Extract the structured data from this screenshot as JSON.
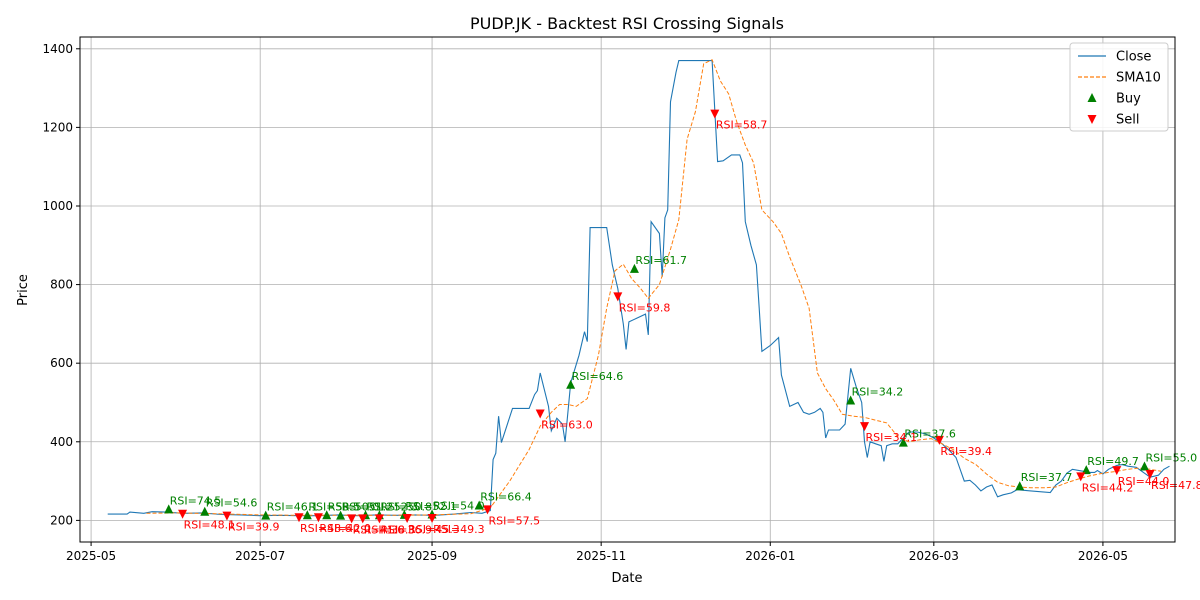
{
  "chart_data": {
    "type": "line",
    "title": "PUDP.JK - Backtest RSI Crossing Signals",
    "xlabel": "Date",
    "ylabel": "Price",
    "grid": true,
    "legend_position": "top-right",
    "xlim": [
      "2025-04-27",
      "2026-05-27"
    ],
    "ylim": [
      145,
      1430
    ],
    "x_ticks": [
      "2025-05-01",
      "2025-07-01",
      "2025-09-01",
      "2025-11-01",
      "2026-01-01",
      "2026-03-01",
      "2026-05-01"
    ],
    "x_tick_labels": [
      "2025-05",
      "2025-07",
      "2025-09",
      "2025-11",
      "2026-01",
      "2026-03",
      "2026-05"
    ],
    "y_ticks": [
      200,
      400,
      600,
      800,
      1000,
      1200,
      1400
    ],
    "colors": {
      "close": "#1f77b4",
      "sma": "#ff7f0e",
      "buy": "#008000",
      "sell": "#ff0000"
    },
    "series": [
      {
        "name": "Close",
        "style": "solid",
        "points": [
          [
            "2025-05-07",
            216
          ],
          [
            "2025-05-14",
            216
          ],
          [
            "2025-05-15",
            221
          ],
          [
            "2025-05-20",
            218
          ],
          [
            "2025-05-23",
            222
          ],
          [
            "2025-05-28",
            221
          ],
          [
            "2025-06-03",
            218
          ],
          [
            "2025-06-10",
            219
          ],
          [
            "2025-06-17",
            215
          ],
          [
            "2025-06-24",
            214
          ],
          [
            "2025-07-01",
            212
          ],
          [
            "2025-07-08",
            213
          ],
          [
            "2025-07-15",
            212
          ],
          [
            "2025-07-22",
            212
          ],
          [
            "2025-07-29",
            214
          ],
          [
            "2025-08-05",
            212
          ],
          [
            "2025-08-12",
            214
          ],
          [
            "2025-08-19",
            213
          ],
          [
            "2025-08-26",
            214
          ],
          [
            "2025-09-02",
            213
          ],
          [
            "2025-09-09",
            216
          ],
          [
            "2025-09-15",
            220
          ],
          [
            "2025-09-19",
            218
          ],
          [
            "2025-09-22",
            225
          ],
          [
            "2025-09-23",
            355
          ],
          [
            "2025-09-24",
            371
          ],
          [
            "2025-09-25",
            465
          ],
          [
            "2025-09-26",
            398
          ],
          [
            "2025-09-30",
            485
          ],
          [
            "2025-10-03",
            485
          ],
          [
            "2025-10-06",
            485
          ],
          [
            "2025-10-08",
            520
          ],
          [
            "2025-10-09",
            530
          ],
          [
            "2025-10-10",
            575
          ],
          [
            "2025-10-13",
            490
          ],
          [
            "2025-10-14",
            428
          ],
          [
            "2025-10-16",
            460
          ],
          [
            "2025-10-18",
            445
          ],
          [
            "2025-10-19",
            400
          ],
          [
            "2025-10-21",
            550
          ],
          [
            "2025-10-24",
            620
          ],
          [
            "2025-10-26",
            680
          ],
          [
            "2025-10-27",
            655
          ],
          [
            "2025-10-28",
            945
          ],
          [
            "2025-11-01",
            945
          ],
          [
            "2025-11-03",
            945
          ],
          [
            "2025-11-05",
            850
          ],
          [
            "2025-11-07",
            790
          ],
          [
            "2025-11-09",
            700
          ],
          [
            "2025-11-10",
            635
          ],
          [
            "2025-11-11",
            705
          ],
          [
            "2025-11-14",
            715
          ],
          [
            "2025-11-17",
            725
          ],
          [
            "2025-11-18",
            672
          ],
          [
            "2025-11-19",
            960
          ],
          [
            "2025-11-22",
            930
          ],
          [
            "2025-11-23",
            820
          ],
          [
            "2025-11-24",
            970
          ],
          [
            "2025-11-25",
            990
          ],
          [
            "2025-11-26",
            1265
          ],
          [
            "2025-11-28",
            1340
          ],
          [
            "2025-11-29",
            1370
          ],
          [
            "2025-12-08",
            1370
          ],
          [
            "2025-12-11",
            1370
          ],
          [
            "2025-12-13",
            1113
          ],
          [
            "2025-12-15",
            1115
          ],
          [
            "2025-12-18",
            1130
          ],
          [
            "2025-12-21",
            1130
          ],
          [
            "2025-12-22",
            1110
          ],
          [
            "2025-12-23",
            960
          ],
          [
            "2025-12-25",
            900
          ],
          [
            "2025-12-27",
            850
          ],
          [
            "2025-12-28",
            740
          ],
          [
            "2025-12-29",
            630
          ],
          [
            "2026-01-01",
            645
          ],
          [
            "2026-01-04",
            665
          ],
          [
            "2026-01-05",
            570
          ],
          [
            "2026-01-08",
            490
          ],
          [
            "2026-01-11",
            500
          ],
          [
            "2026-01-13",
            475
          ],
          [
            "2026-01-15",
            470
          ],
          [
            "2026-01-17",
            475
          ],
          [
            "2026-01-19",
            485
          ],
          [
            "2026-01-20",
            475
          ],
          [
            "2026-01-21",
            410
          ],
          [
            "2026-01-22",
            430
          ],
          [
            "2026-01-24",
            430
          ],
          [
            "2026-01-26",
            430
          ],
          [
            "2026-01-28",
            445
          ],
          [
            "2026-01-30",
            587
          ],
          [
            "2026-02-01",
            540
          ],
          [
            "2026-02-03",
            500
          ],
          [
            "2026-02-04",
            400
          ],
          [
            "2026-02-05",
            360
          ],
          [
            "2026-02-06",
            400
          ],
          [
            "2026-02-08",
            395
          ],
          [
            "2026-02-10",
            390
          ],
          [
            "2026-02-11",
            350
          ],
          [
            "2026-02-12",
            390
          ],
          [
            "2026-02-14",
            395
          ],
          [
            "2026-02-16",
            395
          ],
          [
            "2026-02-18",
            410
          ],
          [
            "2026-02-20",
            425
          ],
          [
            "2026-02-23",
            425
          ],
          [
            "2026-02-26",
            420
          ],
          [
            "2026-03-01",
            410
          ],
          [
            "2026-03-04",
            395
          ],
          [
            "2026-03-07",
            375
          ],
          [
            "2026-03-09",
            360
          ],
          [
            "2026-03-11",
            320
          ],
          [
            "2026-03-12",
            300
          ],
          [
            "2026-03-14",
            302
          ],
          [
            "2026-03-16",
            290
          ],
          [
            "2026-03-18",
            275
          ],
          [
            "2026-03-20",
            285
          ],
          [
            "2026-03-22",
            290
          ],
          [
            "2026-03-24",
            260
          ],
          [
            "2026-03-26",
            265
          ],
          [
            "2026-03-29",
            270
          ],
          [
            "2026-03-31",
            278
          ],
          [
            "2026-04-05",
            275
          ],
          [
            "2026-04-12",
            271
          ],
          [
            "2026-04-14",
            290
          ],
          [
            "2026-04-16",
            300
          ],
          [
            "2026-04-18",
            320
          ],
          [
            "2026-04-20",
            330
          ],
          [
            "2026-04-24",
            325
          ],
          [
            "2026-04-26",
            322
          ],
          [
            "2026-04-28",
            322
          ],
          [
            "2026-04-29",
            327
          ],
          [
            "2026-05-01",
            318
          ],
          [
            "2026-05-03",
            330
          ],
          [
            "2026-05-06",
            340
          ],
          [
            "2026-05-08",
            342
          ],
          [
            "2026-05-10",
            338
          ],
          [
            "2026-05-13",
            335
          ],
          [
            "2026-05-16",
            320
          ],
          [
            "2026-05-18",
            310
          ],
          [
            "2026-05-21",
            315
          ],
          [
            "2026-05-23",
            330
          ],
          [
            "2026-05-25",
            338
          ]
        ]
      },
      {
        "name": "SMA10",
        "style": "dashed",
        "points": [
          [
            "2025-05-21",
            218
          ],
          [
            "2025-06-01",
            219
          ],
          [
            "2025-06-15",
            217
          ],
          [
            "2025-07-01",
            214
          ],
          [
            "2025-07-15",
            213
          ],
          [
            "2025-08-01",
            213
          ],
          [
            "2025-08-15",
            213
          ],
          [
            "2025-09-01",
            214
          ],
          [
            "2025-09-15",
            217
          ],
          [
            "2025-09-22",
            232
          ],
          [
            "2025-09-29",
            300
          ],
          [
            "2025-10-06",
            380
          ],
          [
            "2025-10-10",
            440
          ],
          [
            "2025-10-14",
            475
          ],
          [
            "2025-10-17",
            495
          ],
          [
            "2025-10-20",
            495
          ],
          [
            "2025-10-23",
            490
          ],
          [
            "2025-10-27",
            510
          ],
          [
            "2025-10-31",
            620
          ],
          [
            "2025-11-03",
            740
          ],
          [
            "2025-11-06",
            835
          ],
          [
            "2025-11-09",
            852
          ],
          [
            "2025-11-12",
            815
          ],
          [
            "2025-11-15",
            792
          ],
          [
            "2025-11-18",
            765
          ],
          [
            "2025-11-22",
            800
          ],
          [
            "2025-11-26",
            890
          ],
          [
            "2025-11-29",
            965
          ],
          [
            "2025-12-02",
            1170
          ],
          [
            "2025-12-05",
            1240
          ],
          [
            "2025-12-08",
            1362
          ],
          [
            "2025-12-11",
            1372
          ],
          [
            "2025-12-14",
            1318
          ],
          [
            "2025-12-17",
            1285
          ],
          [
            "2025-12-20",
            1212
          ],
          [
            "2025-12-23",
            1155
          ],
          [
            "2025-12-26",
            1110
          ],
          [
            "2025-12-29",
            990
          ],
          [
            "2026-01-02",
            960
          ],
          [
            "2026-01-05",
            930
          ],
          [
            "2026-01-08",
            870
          ],
          [
            "2026-01-12",
            800
          ],
          [
            "2026-01-15",
            740
          ],
          [
            "2026-01-18",
            575
          ],
          [
            "2026-01-21",
            535
          ],
          [
            "2026-01-24",
            505
          ],
          [
            "2026-01-27",
            470
          ],
          [
            "2026-01-31",
            465
          ],
          [
            "2026-02-04",
            462
          ],
          [
            "2026-02-08",
            455
          ],
          [
            "2026-02-12",
            448
          ],
          [
            "2026-02-16",
            413
          ],
          [
            "2026-02-20",
            400
          ],
          [
            "2026-02-24",
            405
          ],
          [
            "2026-02-28",
            408
          ],
          [
            "2026-03-04",
            395
          ],
          [
            "2026-03-08",
            380
          ],
          [
            "2026-03-12",
            358
          ],
          [
            "2026-03-16",
            343
          ],
          [
            "2026-03-20",
            318
          ],
          [
            "2026-03-24",
            297
          ],
          [
            "2026-03-28",
            288
          ],
          [
            "2026-04-01",
            285
          ],
          [
            "2026-04-05",
            283
          ],
          [
            "2026-04-10",
            283
          ],
          [
            "2026-04-14",
            285
          ],
          [
            "2026-04-18",
            296
          ],
          [
            "2026-04-22",
            305
          ],
          [
            "2026-04-26",
            313
          ],
          [
            "2026-05-01",
            320
          ],
          [
            "2026-05-06",
            325
          ],
          [
            "2026-05-10",
            330
          ],
          [
            "2026-05-14",
            333
          ],
          [
            "2026-05-18",
            330
          ],
          [
            "2026-05-22",
            325
          ]
        ]
      }
    ],
    "buy_signals": [
      {
        "date": "2025-05-29",
        "price": 228,
        "label": "RSI=74.5"
      },
      {
        "date": "2025-06-11",
        "price": 222,
        "label": "RSI=54.6"
      },
      {
        "date": "2025-07-03",
        "price": 212,
        "label": "RSI=46.1"
      },
      {
        "date": "2025-07-18",
        "price": 213,
        "label": "RSI=53.5"
      },
      {
        "date": "2025-07-25",
        "price": 213,
        "label": "RSI=50.0"
      },
      {
        "date": "2025-07-30",
        "price": 212,
        "label": "RSI=51.2"
      },
      {
        "date": "2025-08-08",
        "price": 213,
        "label": "RSI=52.3"
      },
      {
        "date": "2025-08-13",
        "price": 213,
        "label": "RSI=50.8"
      },
      {
        "date": "2025-08-22",
        "price": 214,
        "label": "RSI=52.1"
      },
      {
        "date": "2025-09-01",
        "price": 215,
        "label": "RSI=54.0"
      },
      {
        "date": "2025-09-18",
        "price": 238,
        "label": "RSI=66.4"
      },
      {
        "date": "2025-10-21",
        "price": 545,
        "label": "RSI=64.6"
      },
      {
        "date": "2025-11-13",
        "price": 840,
        "label": "RSI=61.7"
      },
      {
        "date": "2026-01-30",
        "price": 505,
        "label": "RSI=34.2"
      },
      {
        "date": "2026-02-18",
        "price": 398,
        "label": "RSI=37.6"
      },
      {
        "date": "2026-04-01",
        "price": 287,
        "label": "RSI=37.7"
      },
      {
        "date": "2026-04-25",
        "price": 328,
        "label": "RSI=49.7"
      },
      {
        "date": "2026-05-16",
        "price": 337,
        "label": "RSI=55.0"
      }
    ],
    "sell_signals": [
      {
        "date": "2025-06-03",
        "price": 217,
        "label": "RSI=48.1"
      },
      {
        "date": "2025-06-19",
        "price": 212,
        "label": "RSI=39.9"
      },
      {
        "date": "2025-07-15",
        "price": 208,
        "label": "RSI=48.6"
      },
      {
        "date": "2025-07-22",
        "price": 208,
        "label": "RSI=42.0"
      },
      {
        "date": "2025-08-03",
        "price": 205,
        "label": "RSI=41.6"
      },
      {
        "date": "2025-08-07",
        "price": 205,
        "label": "RSI=38.3"
      },
      {
        "date": "2025-08-13",
        "price": 205,
        "label": "RSI=36.9"
      },
      {
        "date": "2025-08-23",
        "price": 206,
        "label": "RSI=45.3"
      },
      {
        "date": "2025-09-01",
        "price": 206,
        "label": "RSI=49.3"
      },
      {
        "date": "2025-09-21",
        "price": 228,
        "label": "RSI=57.5"
      },
      {
        "date": "2025-10-10",
        "price": 472,
        "label": "RSI=63.0"
      },
      {
        "date": "2025-11-07",
        "price": 770,
        "label": "RSI=59.8"
      },
      {
        "date": "2025-12-12",
        "price": 1235,
        "label": "RSI=58.7"
      },
      {
        "date": "2026-02-04",
        "price": 440,
        "label": "RSI=34.1"
      },
      {
        "date": "2026-03-03",
        "price": 405,
        "label": "RSI=39.4"
      },
      {
        "date": "2026-04-23",
        "price": 312,
        "label": "RSI=44.2"
      },
      {
        "date": "2026-05-06",
        "price": 328,
        "label": "RSI=44.0"
      },
      {
        "date": "2026-05-18",
        "price": 318,
        "label": "RSI=47.8"
      }
    ]
  },
  "legend": {
    "items": [
      {
        "name": "Close",
        "kind": "line-solid"
      },
      {
        "name": "SMA10",
        "kind": "line-dashed"
      },
      {
        "name": "Buy",
        "kind": "triangle-up"
      },
      {
        "name": "Sell",
        "kind": "triangle-down"
      }
    ]
  }
}
